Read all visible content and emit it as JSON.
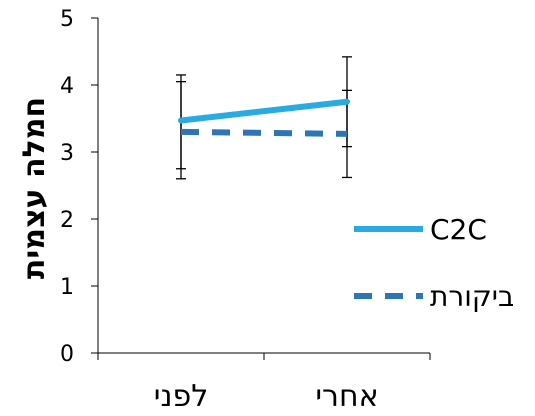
{
  "chart_data": {
    "type": "line",
    "title": "",
    "xlabel": "",
    "ylabel": "חמלה עצמית",
    "categories": [
      "לפני",
      "אחרי"
    ],
    "ylim": [
      0,
      5
    ],
    "yticks": [
      0,
      1,
      2,
      3,
      4,
      5
    ],
    "grid": false,
    "legend_position": "right",
    "series": [
      {
        "name": "C2C",
        "values": [
          3.47,
          3.75
        ],
        "error_low": [
          2.75,
          3.08
        ],
        "error_high": [
          4.15,
          4.42
        ],
        "color": "#29abe2",
        "dash": "solid"
      },
      {
        "name": "ביקורת",
        "values": [
          3.3,
          3.27
        ],
        "error_low": [
          2.6,
          2.62
        ],
        "error_high": [
          4.05,
          3.92
        ],
        "color": "#2e75b6",
        "dash": "dashed"
      }
    ]
  }
}
